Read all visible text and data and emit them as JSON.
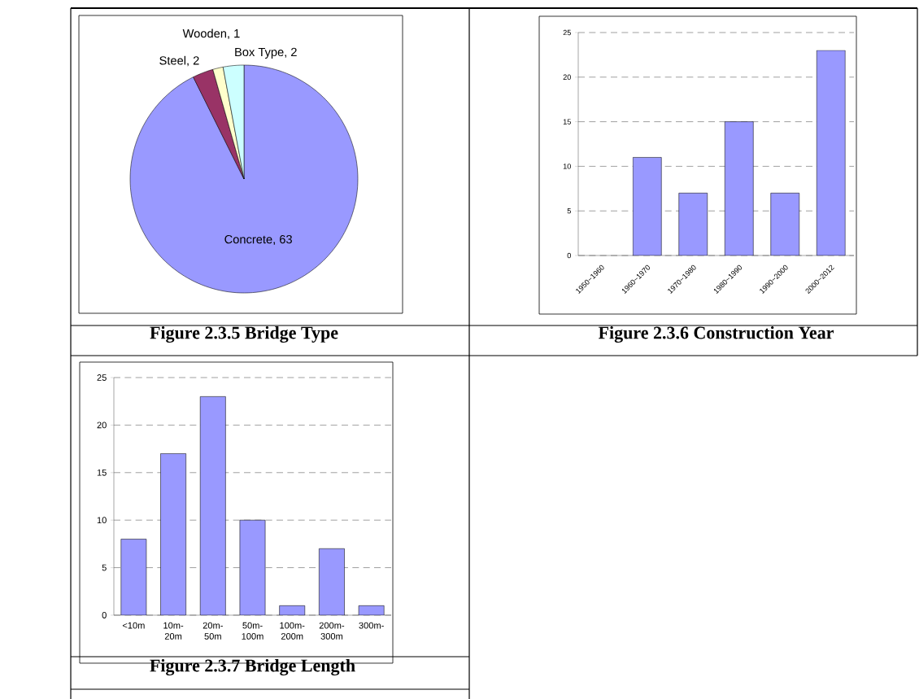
{
  "chart_data": [
    {
      "type": "pie",
      "title": "Figure 2.3.5 Bridge Type",
      "categories": [
        "Concrete",
        "Steel",
        "Wooden",
        "Box Type"
      ],
      "values": [
        63,
        2,
        1,
        2
      ],
      "colors": [
        "#9999ff",
        "#993366",
        "#ffffcc",
        "#ccffff"
      ],
      "value_labels": [
        ", 63",
        ", 2",
        ", 1",
        ", 2"
      ]
    },
    {
      "type": "bar",
      "title": "Figure 2.3.6 Construction Year",
      "categories": [
        "1950~1960",
        "1960~1970",
        "1970~1980",
        "1980~1990",
        "1990~2000",
        "2000~2012"
      ],
      "values": [
        0,
        11,
        7,
        15,
        7,
        23
      ],
      "color": "#9999ff",
      "ylim": [
        0,
        25
      ],
      "yticks": [
        0,
        5,
        10,
        15,
        20,
        25
      ],
      "grid": "y"
    },
    {
      "type": "bar",
      "title": "Figure 2.3.7 Bridge Length",
      "categories": [
        "<10m",
        "10m-20m",
        "20m-50m",
        "50m-100m",
        "100m-200m",
        "200m-300m",
        "300m-"
      ],
      "values": [
        8,
        17,
        23,
        10,
        1,
        7,
        1
      ],
      "color": "#9999ff",
      "ylim": [
        0,
        25
      ],
      "yticks": [
        0,
        5,
        10,
        15,
        20,
        25
      ],
      "grid": "y"
    }
  ]
}
